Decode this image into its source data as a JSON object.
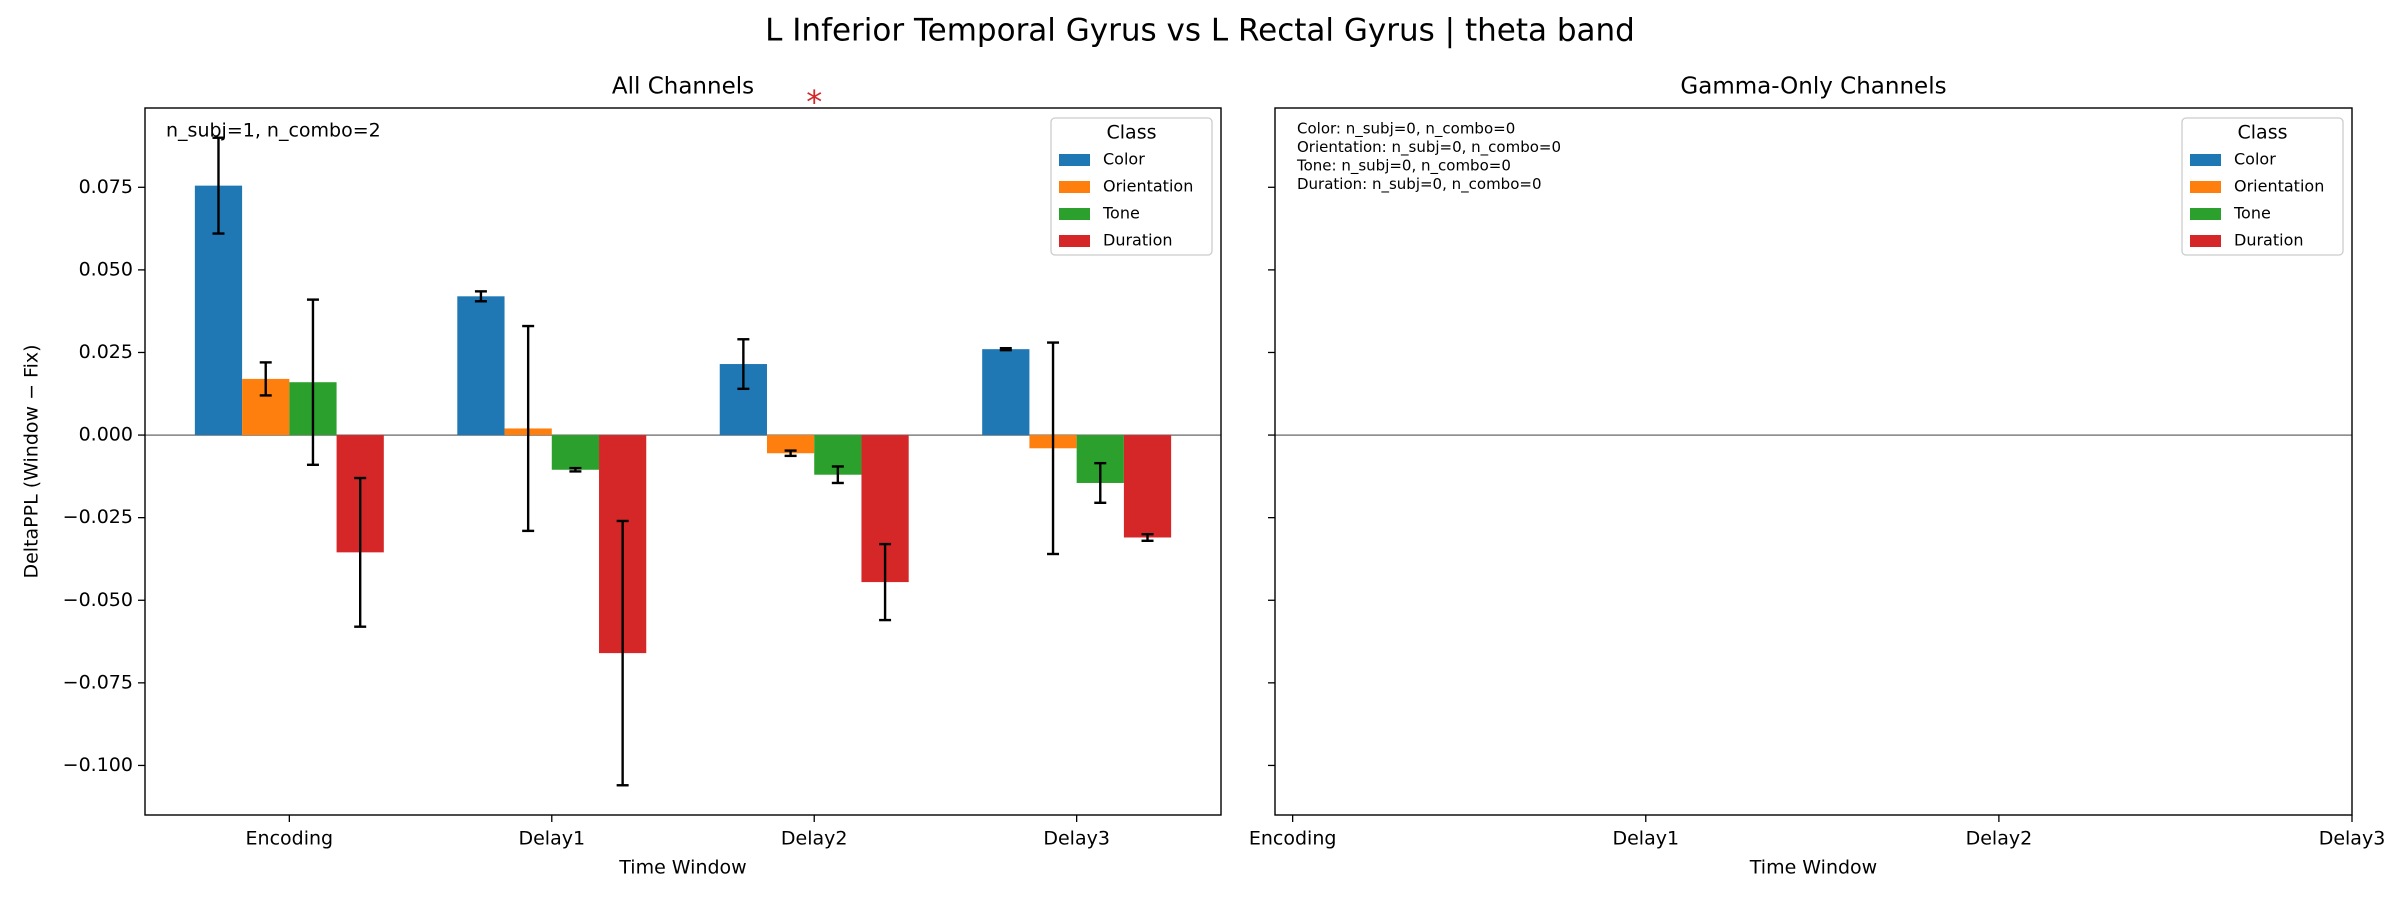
{
  "suptitle": "L Inferior Temporal Gyrus vs L Rectal Gyrus  |  theta band",
  "chart_data": [
    {
      "type": "bar",
      "title": "All Channels",
      "xlabel": "Time Window",
      "ylabel": "DeltaPPL (Window − Fix)",
      "categories": [
        "Encoding",
        "Delay1",
        "Delay2",
        "Delay3"
      ],
      "xlim": [
        -0.55,
        3.55
      ],
      "series": [
        {
          "name": "Color",
          "color": "#1f77b4",
          "values": [
            0.0755,
            0.042,
            0.0215,
            0.026
          ],
          "errors": [
            0.0145,
            0.0015,
            0.0075,
            0.0003
          ]
        },
        {
          "name": "Orientation",
          "color": "#ff7f0e",
          "values": [
            0.017,
            0.002,
            -0.0055,
            -0.004
          ],
          "errors": [
            0.005,
            0.031,
            0.0008,
            0.032
          ]
        },
        {
          "name": "Tone",
          "color": "#2ca02c",
          "values": [
            0.016,
            -0.0105,
            -0.012,
            -0.0145
          ],
          "errors": [
            0.025,
            0.0005,
            0.0025,
            0.006
          ]
        },
        {
          "name": "Duration",
          "color": "#d62728",
          "values": [
            -0.0355,
            -0.066,
            -0.0445,
            -0.031
          ],
          "errors": [
            0.0225,
            0.04,
            0.0115,
            0.001
          ]
        }
      ],
      "ylim": [
        -0.115,
        0.099
      ],
      "yticks": [
        {
          "value": -0.1,
          "label": "−0.100"
        },
        {
          "value": -0.075,
          "label": "−0.075"
        },
        {
          "value": -0.05,
          "label": "−0.050"
        },
        {
          "value": -0.025,
          "label": "−0.025"
        },
        {
          "value": 0,
          "label": "0.000"
        },
        {
          "value": 0.025,
          "label": "0.025"
        },
        {
          "value": 0.05,
          "label": "0.050"
        },
        {
          "value": 0.075,
          "label": "0.075"
        }
      ],
      "legend_title": "Class",
      "legend": "upper right",
      "annotations": [
        "n_subj=1, n_combo=2"
      ],
      "significance": {
        "category": 2,
        "label": "*",
        "color": "#d62728"
      }
    },
    {
      "type": "bar",
      "title": "Gamma-Only Channels",
      "xlabel": "Time Window",
      "categories": [
        "Encoding",
        "Delay1",
        "Delay2",
        "Delay3"
      ],
      "xlim": [
        -0.05,
        3
      ],
      "series": [
        {
          "name": "Color",
          "color": "#1f77b4",
          "values": [
            null,
            null,
            null,
            null
          ]
        },
        {
          "name": "Orientation",
          "color": "#ff7f0e",
          "values": [
            null,
            null,
            null,
            null
          ]
        },
        {
          "name": "Tone",
          "color": "#2ca02c",
          "values": [
            null,
            null,
            null,
            null
          ]
        },
        {
          "name": "Duration",
          "color": "#d62728",
          "values": [
            null,
            null,
            null,
            null
          ]
        }
      ],
      "ylim": [
        -0.115,
        0.099
      ],
      "yticks": [
        -0.1,
        -0.075,
        -0.05,
        -0.025,
        0,
        0.025,
        0.05,
        0.075
      ],
      "legend_title": "Class",
      "legend": "upper right",
      "annotations": [
        "Color: n_subj=0, n_combo=0",
        "Orientation: n_subj=0, n_combo=0",
        "Tone: n_subj=0, n_combo=0",
        "Duration: n_subj=0, n_combo=0"
      ]
    }
  ]
}
